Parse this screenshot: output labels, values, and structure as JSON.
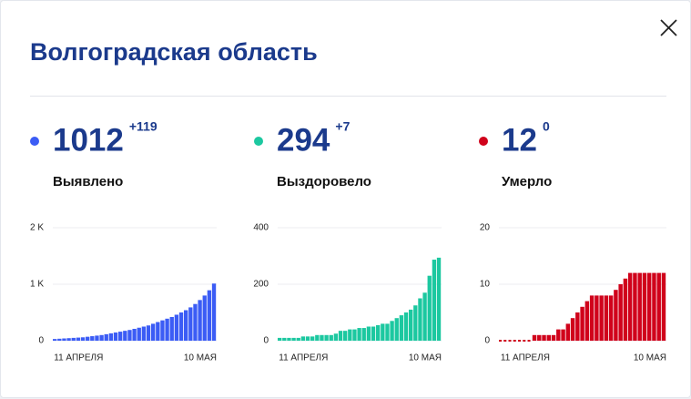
{
  "header": {
    "title": "Волгоградская область"
  },
  "chart_data": [
    {
      "type": "bar",
      "color": "#3b5cf5",
      "summary": {
        "value": 1012,
        "change": "+119",
        "caption": "Выявлено"
      },
      "categories": [
        null,
        null,
        null,
        null,
        null,
        "11 АПРЕЛЯ",
        null,
        null,
        null,
        null,
        null,
        null,
        null,
        null,
        null,
        null,
        null,
        null,
        null,
        null,
        null,
        null,
        null,
        null,
        null,
        null,
        null,
        null,
        null,
        null,
        null,
        null,
        null,
        null,
        "10 МАЯ"
      ],
      "values": [
        30,
        35,
        40,
        45,
        50,
        55,
        60,
        70,
        80,
        90,
        100,
        115,
        130,
        145,
        160,
        175,
        190,
        210,
        230,
        250,
        270,
        300,
        330,
        360,
        390,
        420,
        460,
        500,
        540,
        590,
        650,
        720,
        800,
        893,
        1012
      ],
      "ylim": [
        0,
        2000
      ],
      "yticks": [
        0,
        {
          "value": 1000,
          "label": "1 K"
        },
        {
          "value": 2000,
          "label": "2 K"
        }
      ],
      "grid": true
    },
    {
      "type": "bar",
      "color": "#1cc8a0",
      "summary": {
        "value": 294,
        "change": "+7",
        "caption": "Выздоровело"
      },
      "categories": [
        null,
        null,
        null,
        null,
        null,
        "11 АПРЕЛЯ",
        null,
        null,
        null,
        null,
        null,
        null,
        null,
        null,
        null,
        null,
        null,
        null,
        null,
        null,
        null,
        null,
        null,
        null,
        null,
        null,
        null,
        null,
        null,
        null,
        null,
        null,
        null,
        null,
        "10 МАЯ"
      ],
      "values": [
        10,
        10,
        10,
        10,
        10,
        15,
        15,
        15,
        20,
        20,
        20,
        20,
        25,
        35,
        35,
        40,
        40,
        45,
        45,
        50,
        50,
        55,
        60,
        60,
        70,
        80,
        90,
        100,
        110,
        125,
        150,
        170,
        230,
        287,
        294
      ],
      "ylim": [
        0,
        400
      ],
      "yticks": [
        0,
        200,
        400
      ],
      "grid": true
    },
    {
      "type": "bar",
      "color": "#d0021b",
      "summary": {
        "value": 12,
        "change": "0",
        "caption": "Умерло"
      },
      "categories": [
        null,
        null,
        null,
        null,
        null,
        "11 АПРЕЛЯ",
        null,
        null,
        null,
        null,
        null,
        null,
        null,
        null,
        null,
        null,
        null,
        null,
        null,
        null,
        null,
        null,
        null,
        null,
        null,
        null,
        null,
        null,
        null,
        null,
        null,
        null,
        null,
        null,
        "10 МАЯ"
      ],
      "values": [
        0,
        0,
        0,
        0,
        0,
        0,
        0,
        1,
        1,
        1,
        1,
        1,
        2,
        2,
        3,
        4,
        5,
        6,
        7,
        8,
        8,
        8,
        8,
        8,
        9,
        10,
        11,
        12,
        12,
        12,
        12,
        12,
        12,
        12,
        12
      ],
      "ylim": [
        0,
        20
      ],
      "yticks": [
        0,
        10,
        20
      ],
      "grid": true
    }
  ]
}
